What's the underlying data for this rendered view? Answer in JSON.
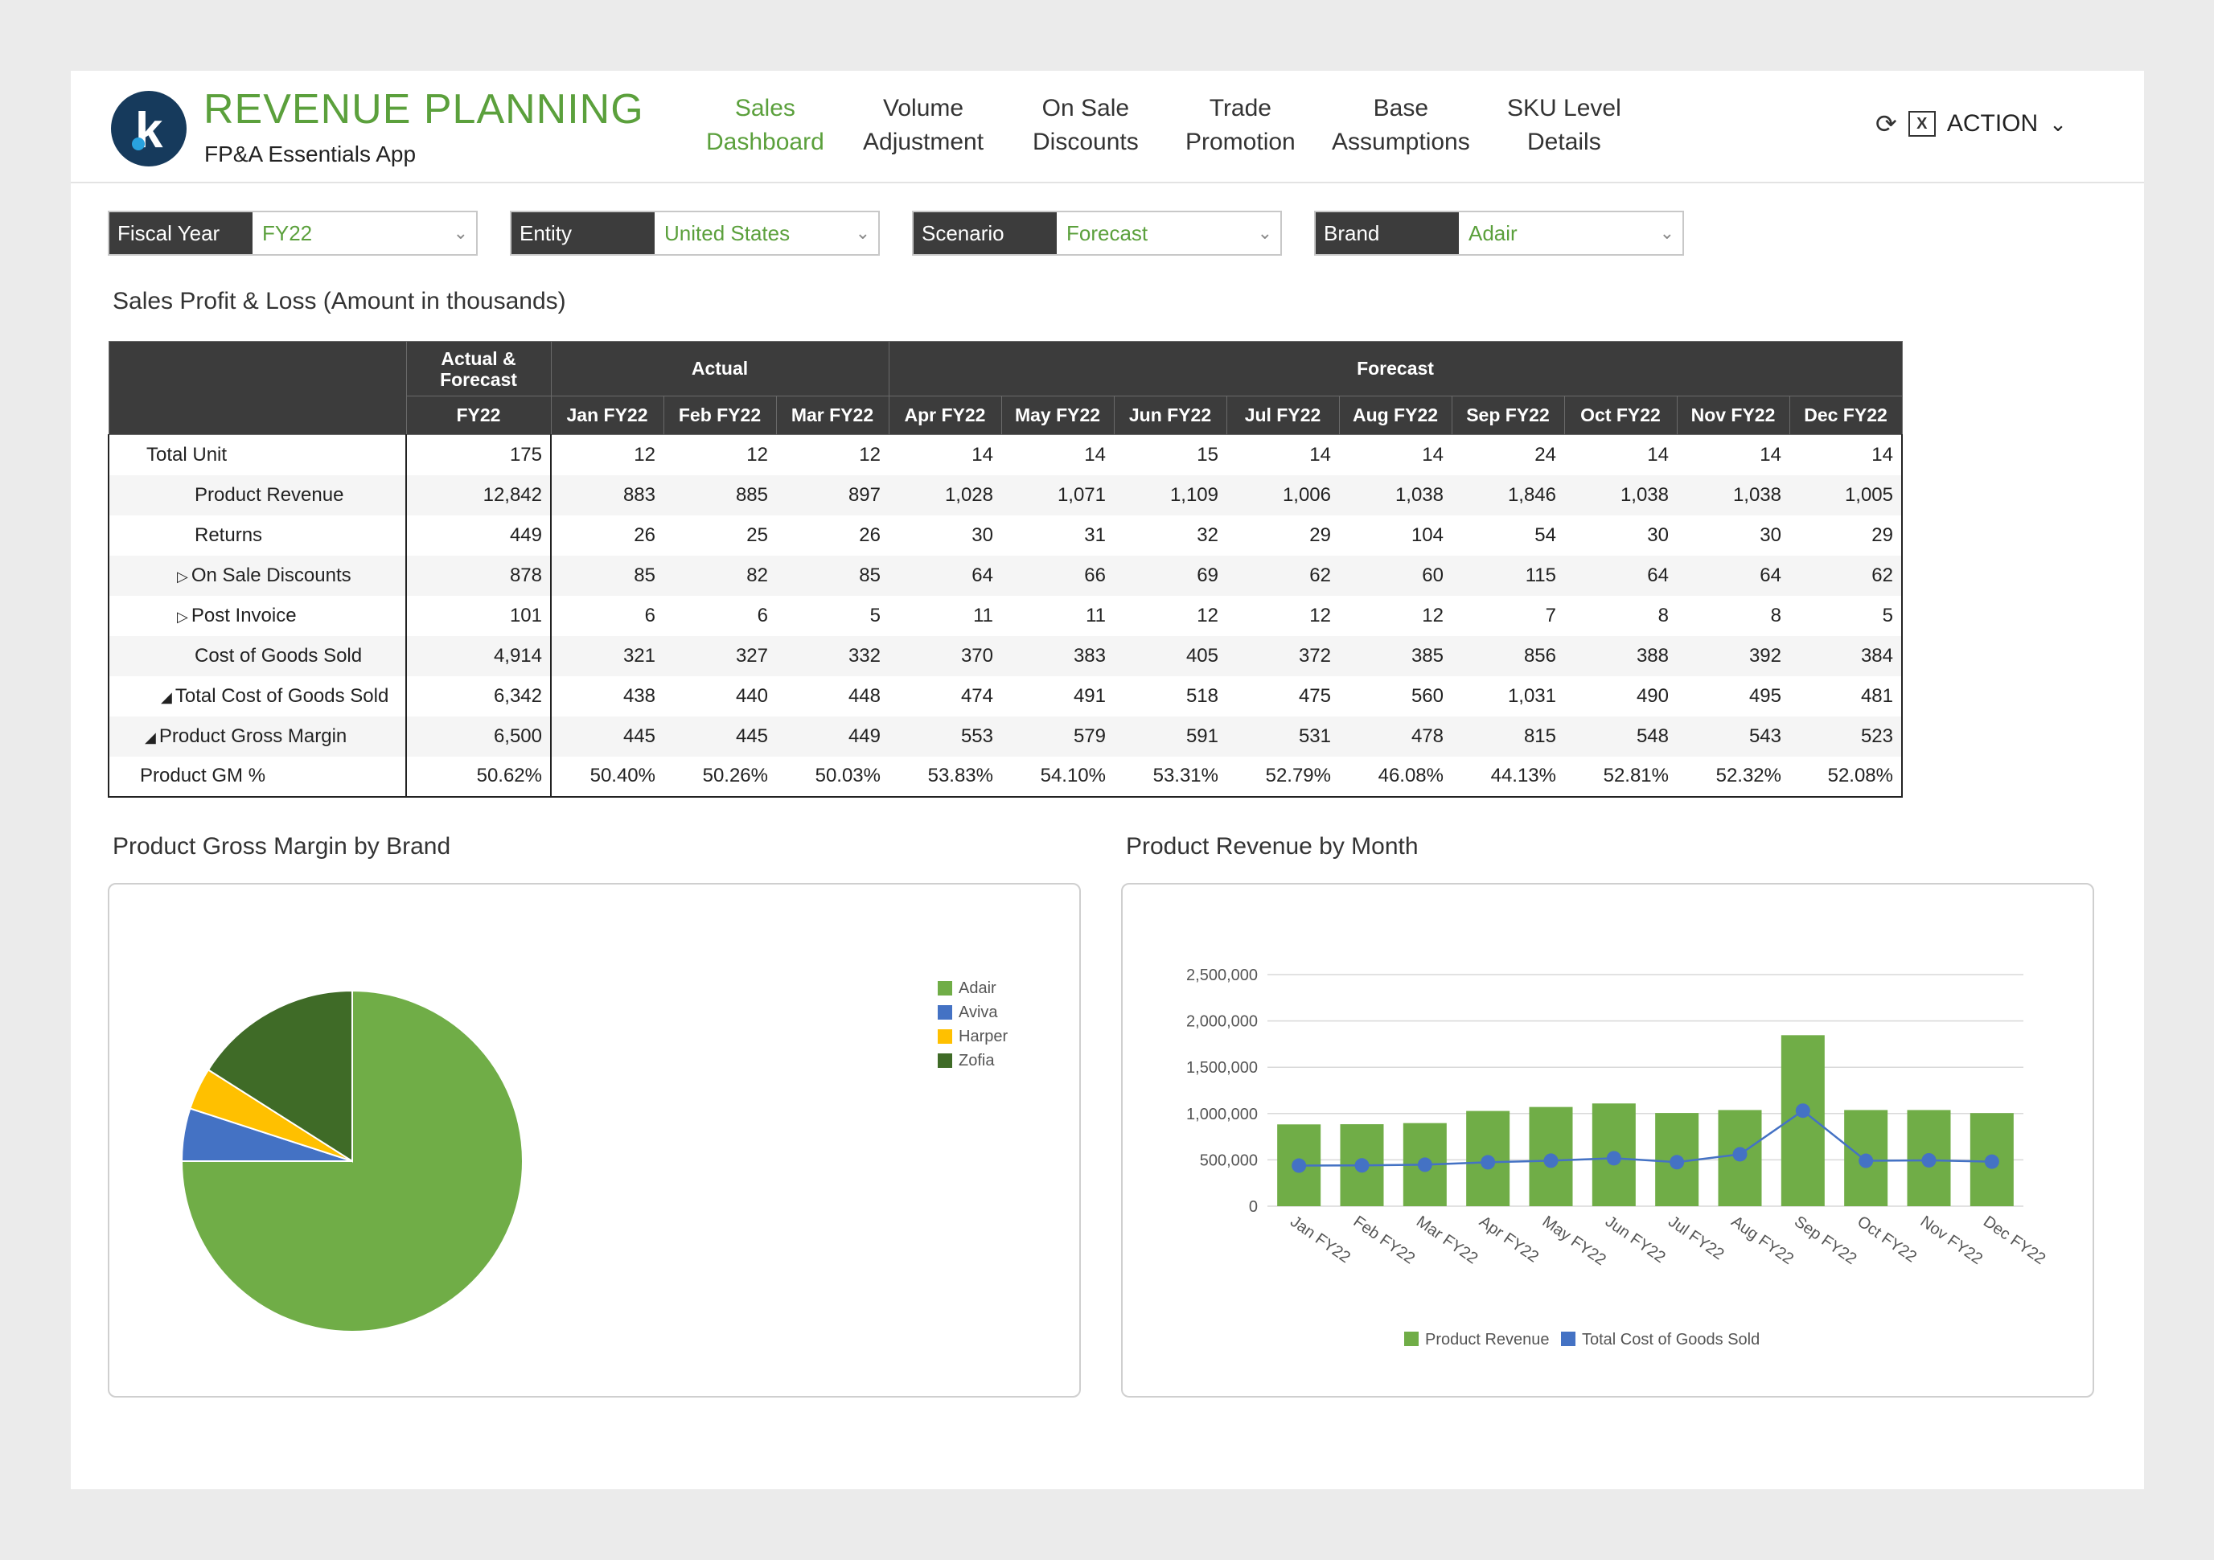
{
  "app": {
    "title": "REVENUE PLANNING",
    "subtitle": "FP&A Essentials App",
    "logo_letter": "k"
  },
  "nav": [
    {
      "line1": "Sales",
      "line2": "Dashboard",
      "active": true
    },
    {
      "line1": "Volume",
      "line2": "Adjustment",
      "active": false
    },
    {
      "line1": "On Sale",
      "line2": "Discounts",
      "active": false
    },
    {
      "line1": "Trade",
      "line2": "Promotion",
      "active": false
    },
    {
      "line1": "Base",
      "line2": "Assumptions",
      "active": false
    },
    {
      "line1": "SKU Level",
      "line2": "Details",
      "active": false
    }
  ],
  "header_actions": {
    "refresh_icon": "refresh-icon",
    "excel_icon": "excel-export-icon",
    "excel_glyph": "X",
    "action_label": "ACTION",
    "chevron": "⌄"
  },
  "filters": [
    {
      "label": "Fiscal Year",
      "value": "FY22"
    },
    {
      "label": "Entity",
      "value": "United States"
    },
    {
      "label": "Scenario",
      "value": "Forecast"
    },
    {
      "label": "Brand",
      "value": "Adair"
    }
  ],
  "pl_title": "Sales Profit & Loss (Amount in thousands)",
  "pl_table": {
    "group_headers": {
      "af": "Actual & Forecast",
      "actual": "Actual",
      "forecast": "Forecast"
    },
    "columns": [
      "FY22",
      "Jan FY22",
      "Feb FY22",
      "Mar FY22",
      "Apr FY22",
      "May FY22",
      "Jun FY22",
      "Jul FY22",
      "Aug FY22",
      "Sep FY22",
      "Oct FY22",
      "Nov FY22",
      "Dec FY22"
    ],
    "rows": [
      {
        "label": "Total Unit",
        "marker": "",
        "values": [
          "175",
          "12",
          "12",
          "12",
          "14",
          "14",
          "15",
          "14",
          "14",
          "24",
          "14",
          "14",
          "14"
        ]
      },
      {
        "label": "Product Revenue",
        "marker": "",
        "values": [
          "12,842",
          "883",
          "885",
          "897",
          "1,028",
          "1,071",
          "1,109",
          "1,006",
          "1,038",
          "1,846",
          "1,038",
          "1,038",
          "1,005"
        ]
      },
      {
        "label": "Returns",
        "marker": "",
        "values": [
          "449",
          "26",
          "25",
          "26",
          "30",
          "31",
          "32",
          "29",
          "104",
          "54",
          "30",
          "30",
          "29"
        ]
      },
      {
        "label": "On Sale Discounts",
        "marker": "▷",
        "values": [
          "878",
          "85",
          "82",
          "85",
          "64",
          "66",
          "69",
          "62",
          "60",
          "115",
          "64",
          "64",
          "62"
        ]
      },
      {
        "label": "Post Invoice",
        "marker": "▷",
        "values": [
          "101",
          "6",
          "6",
          "5",
          "11",
          "11",
          "12",
          "12",
          "12",
          "7",
          "8",
          "8",
          "5"
        ]
      },
      {
        "label": "Cost of Goods Sold",
        "marker": "",
        "values": [
          "4,914",
          "321",
          "327",
          "332",
          "370",
          "383",
          "405",
          "372",
          "385",
          "856",
          "388",
          "392",
          "384"
        ]
      },
      {
        "label": "Total Cost of Goods Sold",
        "marker": "◢",
        "values": [
          "6,342",
          "438",
          "440",
          "448",
          "474",
          "491",
          "518",
          "475",
          "560",
          "1,031",
          "490",
          "495",
          "481"
        ]
      },
      {
        "label": "Product Gross Margin",
        "marker": "◢",
        "values": [
          "6,500",
          "445",
          "445",
          "449",
          "553",
          "579",
          "591",
          "531",
          "478",
          "815",
          "548",
          "543",
          "523"
        ]
      },
      {
        "label": "Product GM %",
        "marker": "",
        "values": [
          "50.62%",
          "50.40%",
          "50.26%",
          "50.03%",
          "53.83%",
          "54.10%",
          "53.31%",
          "52.79%",
          "46.08%",
          "44.13%",
          "52.81%",
          "52.32%",
          "52.08%"
        ]
      }
    ]
  },
  "chart_titles": {
    "pie": "Product Gross Margin by Brand",
    "bar": "Product Revenue by Month"
  },
  "chart_data": [
    {
      "type": "pie",
      "title": "Product Gross Margin by Brand",
      "categories": [
        "Adair",
        "Aviva",
        "Harper",
        "Zofia"
      ],
      "values": [
        75,
        5,
        4,
        16
      ],
      "colors": [
        "#70ad47",
        "#4472c4",
        "#ffc000",
        "#3f6b27"
      ],
      "legend": "right"
    },
    {
      "type": "bar",
      "title": "Product Revenue by Month",
      "categories": [
        "Jan FY22",
        "Feb FY22",
        "Mar FY22",
        "Apr FY22",
        "May FY22",
        "Jun FY22",
        "Jul FY22",
        "Aug FY22",
        "Sep FY22",
        "Oct FY22",
        "Nov FY22",
        "Dec FY22"
      ],
      "ylim": [
        0,
        2500000
      ],
      "yticks": [
        "0",
        "500,000",
        "1,000,000",
        "1,500,000",
        "2,000,000",
        "2,500,000"
      ],
      "series": [
        {
          "name": "Product Revenue",
          "type": "bar",
          "color": "#70ad47",
          "values": [
            883000,
            885000,
            897000,
            1028000,
            1071000,
            1109000,
            1006000,
            1038000,
            1846000,
            1038000,
            1038000,
            1005000
          ]
        },
        {
          "name": "Total Cost of Goods Sold",
          "type": "line",
          "color": "#4472c4",
          "values": [
            438000,
            440000,
            448000,
            474000,
            491000,
            518000,
            475000,
            560000,
            1031000,
            490000,
            495000,
            481000
          ]
        }
      ],
      "grid": true,
      "legend": "bottom"
    }
  ]
}
